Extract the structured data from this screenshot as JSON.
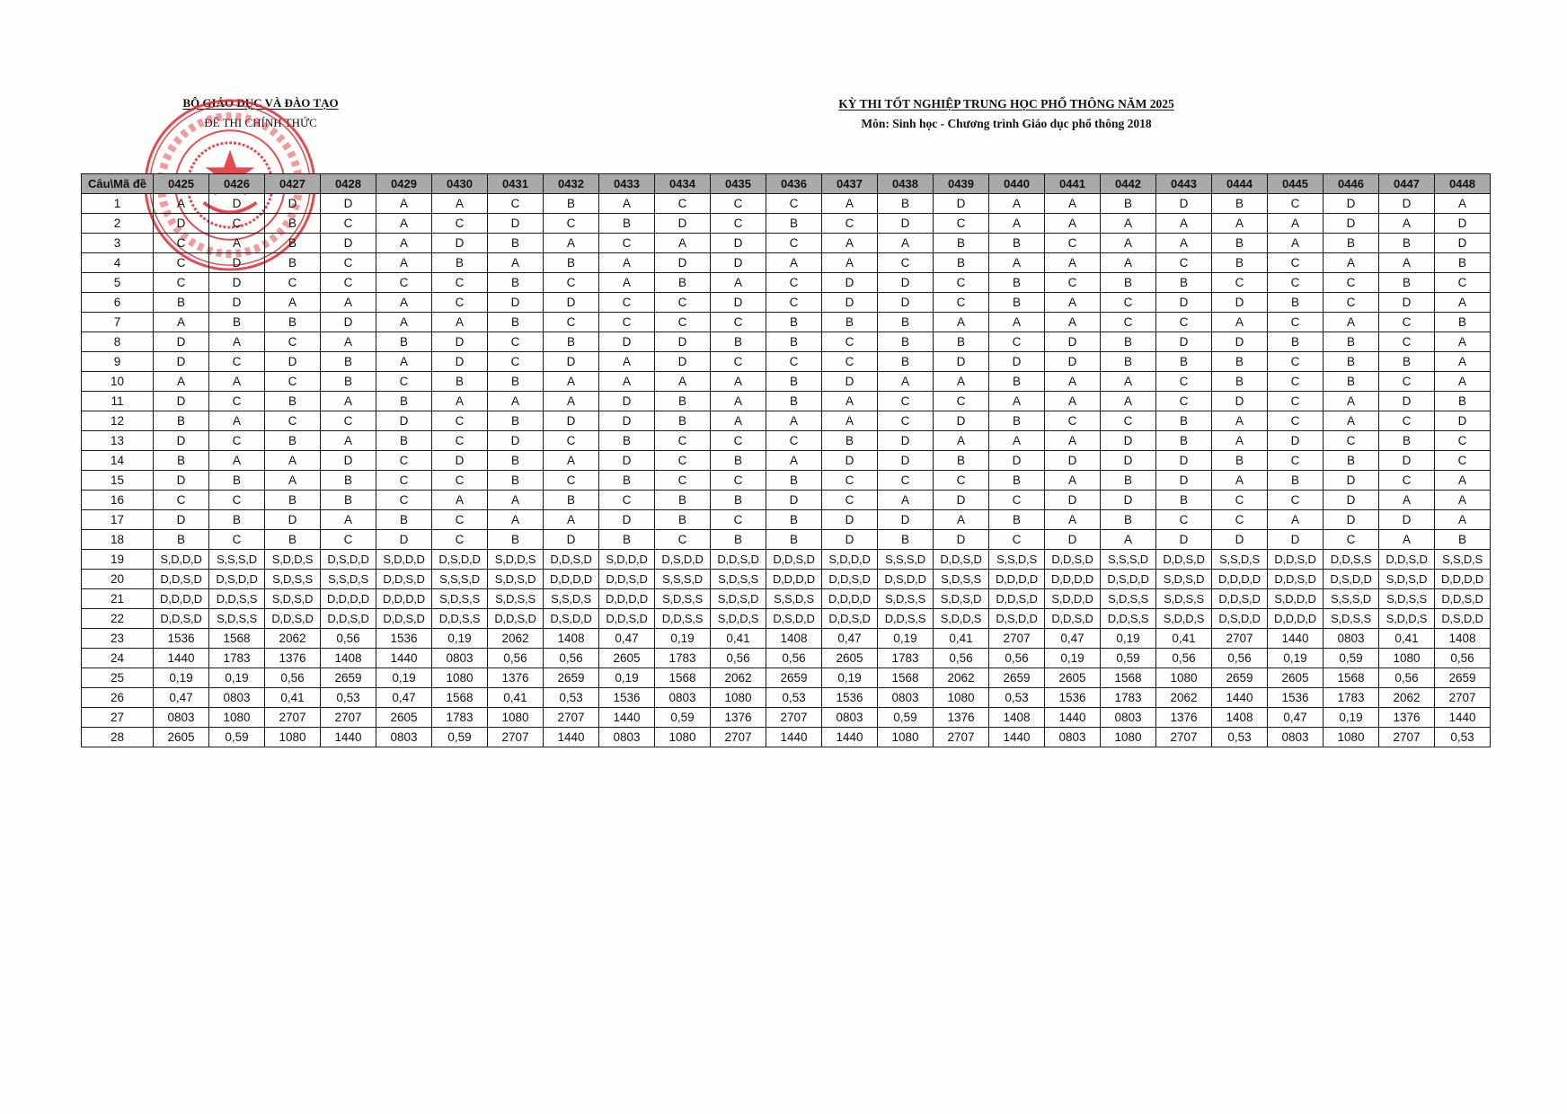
{
  "header_left": {
    "line1": "BỘ GIÁO DỤC VÀ ĐÀO TẠO",
    "line2": "ĐỀ THI CHÍNH THỨC"
  },
  "header_right": {
    "line1": "KỲ THI TỐT NGHIỆP TRUNG HỌC PHỔ THÔNG NĂM 2025",
    "line2": "Môn: Sinh học - Chương trình Giáo dục phổ thông 2018"
  },
  "stamp": {
    "text": "BỘ GIÁO DỤC VÀ ĐÀO TẠO",
    "color": "#e0242b"
  },
  "table": {
    "corner_label": "Câu\\Mã đề",
    "codes": [
      "0425",
      "0426",
      "0427",
      "0428",
      "0429",
      "0430",
      "0431",
      "0432",
      "0433",
      "0434",
      "0435",
      "0436",
      "0437",
      "0438",
      "0439",
      "0440",
      "0441",
      "0442",
      "0443",
      "0444",
      "0445",
      "0446",
      "0447",
      "0448"
    ],
    "rows": [
      {
        "q": "1",
        "a": [
          "A",
          "D",
          "D",
          "D",
          "A",
          "A",
          "C",
          "B",
          "A",
          "C",
          "C",
          "C",
          "A",
          "B",
          "D",
          "A",
          "A",
          "B",
          "D",
          "B",
          "C",
          "D",
          "D",
          "A"
        ]
      },
      {
        "q": "2",
        "a": [
          "D",
          "C",
          "B",
          "C",
          "A",
          "C",
          "D",
          "C",
          "B",
          "D",
          "C",
          "B",
          "C",
          "D",
          "C",
          "A",
          "A",
          "A",
          "A",
          "A",
          "A",
          "D",
          "A",
          "D"
        ]
      },
      {
        "q": "3",
        "a": [
          "C",
          "A",
          "B",
          "D",
          "A",
          "D",
          "B",
          "A",
          "C",
          "A",
          "D",
          "C",
          "A",
          "A",
          "B",
          "B",
          "C",
          "A",
          "A",
          "B",
          "A",
          "B",
          "B",
          "D"
        ]
      },
      {
        "q": "4",
        "a": [
          "C",
          "D",
          "B",
          "C",
          "A",
          "B",
          "A",
          "B",
          "A",
          "D",
          "D",
          "A",
          "A",
          "C",
          "B",
          "A",
          "A",
          "A",
          "C",
          "B",
          "C",
          "A",
          "A",
          "B"
        ]
      },
      {
        "q": "5",
        "a": [
          "C",
          "D",
          "C",
          "C",
          "C",
          "C",
          "B",
          "C",
          "A",
          "B",
          "A",
          "C",
          "D",
          "D",
          "C",
          "B",
          "C",
          "B",
          "B",
          "C",
          "C",
          "C",
          "B",
          "C"
        ]
      },
      {
        "q": "6",
        "a": [
          "B",
          "D",
          "A",
          "A",
          "A",
          "C",
          "D",
          "D",
          "C",
          "C",
          "D",
          "C",
          "D",
          "D",
          "C",
          "B",
          "A",
          "C",
          "D",
          "D",
          "B",
          "C",
          "D",
          "A"
        ]
      },
      {
        "q": "7",
        "a": [
          "A",
          "B",
          "B",
          "D",
          "A",
          "A",
          "B",
          "C",
          "C",
          "C",
          "C",
          "B",
          "B",
          "B",
          "A",
          "A",
          "A",
          "C",
          "C",
          "A",
          "C",
          "A",
          "C",
          "B"
        ]
      },
      {
        "q": "8",
        "a": [
          "D",
          "A",
          "C",
          "A",
          "B",
          "D",
          "C",
          "B",
          "D",
          "D",
          "B",
          "B",
          "C",
          "B",
          "B",
          "C",
          "D",
          "B",
          "D",
          "D",
          "B",
          "B",
          "C",
          "A"
        ]
      },
      {
        "q": "9",
        "a": [
          "D",
          "C",
          "D",
          "B",
          "A",
          "D",
          "C",
          "D",
          "A",
          "D",
          "C",
          "C",
          "C",
          "B",
          "D",
          "D",
          "D",
          "B",
          "B",
          "B",
          "C",
          "B",
          "B",
          "A"
        ]
      },
      {
        "q": "10",
        "a": [
          "A",
          "A",
          "C",
          "B",
          "C",
          "B",
          "B",
          "A",
          "A",
          "A",
          "A",
          "B",
          "D",
          "A",
          "A",
          "B",
          "A",
          "A",
          "C",
          "B",
          "C",
          "B",
          "C",
          "A"
        ]
      },
      {
        "q": "11",
        "a": [
          "D",
          "C",
          "B",
          "A",
          "B",
          "A",
          "A",
          "A",
          "D",
          "B",
          "A",
          "B",
          "A",
          "C",
          "C",
          "A",
          "A",
          "A",
          "C",
          "D",
          "C",
          "A",
          "D",
          "B"
        ]
      },
      {
        "q": "12",
        "a": [
          "B",
          "A",
          "C",
          "C",
          "D",
          "C",
          "B",
          "D",
          "D",
          "B",
          "A",
          "A",
          "A",
          "C",
          "D",
          "B",
          "C",
          "C",
          "B",
          "A",
          "C",
          "A",
          "C",
          "D"
        ]
      },
      {
        "q": "13",
        "a": [
          "D",
          "C",
          "B",
          "A",
          "B",
          "C",
          "D",
          "C",
          "B",
          "C",
          "C",
          "C",
          "B",
          "D",
          "A",
          "A",
          "A",
          "D",
          "B",
          "A",
          "D",
          "C",
          "B",
          "C"
        ]
      },
      {
        "q": "14",
        "a": [
          "B",
          "A",
          "A",
          "D",
          "C",
          "D",
          "B",
          "A",
          "D",
          "C",
          "B",
          "A",
          "D",
          "D",
          "B",
          "D",
          "D",
          "D",
          "D",
          "B",
          "C",
          "B",
          "D",
          "C"
        ]
      },
      {
        "q": "15",
        "a": [
          "D",
          "B",
          "A",
          "B",
          "C",
          "C",
          "B",
          "C",
          "B",
          "C",
          "C",
          "B",
          "C",
          "C",
          "C",
          "B",
          "A",
          "B",
          "D",
          "A",
          "B",
          "D",
          "C",
          "A"
        ]
      },
      {
        "q": "16",
        "a": [
          "C",
          "C",
          "B",
          "B",
          "C",
          "A",
          "A",
          "B",
          "C",
          "B",
          "B",
          "D",
          "C",
          "A",
          "D",
          "C",
          "D",
          "D",
          "B",
          "C",
          "C",
          "D",
          "A",
          "A"
        ]
      },
      {
        "q": "17",
        "a": [
          "D",
          "B",
          "D",
          "A",
          "B",
          "C",
          "A",
          "A",
          "D",
          "B",
          "C",
          "B",
          "D",
          "D",
          "A",
          "B",
          "A",
          "B",
          "C",
          "C",
          "A",
          "D",
          "D",
          "A"
        ]
      },
      {
        "q": "18",
        "a": [
          "B",
          "C",
          "B",
          "C",
          "D",
          "C",
          "B",
          "D",
          "B",
          "C",
          "B",
          "B",
          "D",
          "B",
          "D",
          "C",
          "D",
          "A",
          "D",
          "D",
          "D",
          "C",
          "A",
          "B"
        ]
      },
      {
        "q": "19",
        "a": [
          "S,D,D,D",
          "S,S,S,D",
          "S,D,D,S",
          "D,S,D,D",
          "S,D,D,D",
          "D,S,D,D",
          "S,D,D,S",
          "D,D,S,D",
          "S,D,D,D",
          "D,S,D,D",
          "D,D,S,D",
          "D,D,S,D",
          "S,D,D,D",
          "S,S,S,D",
          "D,D,S,D",
          "S,S,D,S",
          "D,D,S,D",
          "S,S,S,D",
          "D,D,S,D",
          "S,S,D,S",
          "D,D,S,D",
          "D,D,S,S",
          "D,D,S,D",
          "S,S,D,S"
        ]
      },
      {
        "q": "20",
        "a": [
          "D,D,S,D",
          "D,S,D,D",
          "S,D,S,S",
          "S,S,D,S",
          "D,D,S,D",
          "S,S,S,D",
          "S,D,S,D",
          "D,D,D,D",
          "D,D,S,D",
          "S,S,S,D",
          "S,D,S,S",
          "D,D,D,D",
          "D,D,S,D",
          "D,S,D,D",
          "S,D,S,S",
          "D,D,D,D",
          "D,D,D,D",
          "D,S,D,D",
          "S,D,S,D",
          "D,D,D,D",
          "D,D,S,D",
          "D,S,D,D",
          "S,D,S,D",
          "D,D,D,D"
        ]
      },
      {
        "q": "21",
        "a": [
          "D,D,D,D",
          "D,D,S,S",
          "S,D,S,D",
          "D,D,D,D",
          "D,D,D,D",
          "S,D,S,S",
          "S,D,S,S",
          "S,S,D,S",
          "D,D,D,D",
          "S,D,S,S",
          "S,D,S,D",
          "S,S,D,S",
          "D,D,D,D",
          "S,D,S,S",
          "S,D,S,D",
          "D,D,S,D",
          "S,D,D,D",
          "S,D,S,S",
          "S,D,S,S",
          "D,D,S,D",
          "S,D,D,D",
          "S,S,S,D",
          "S,D,S,S",
          "D,D,S,D"
        ]
      },
      {
        "q": "22",
        "a": [
          "D,D,S,D",
          "S,D,S,S",
          "D,D,S,D",
          "D,D,S,D",
          "D,D,S,D",
          "D,D,S,S",
          "D,D,S,D",
          "D,S,D,D",
          "D,D,S,D",
          "D,D,S,S",
          "S,D,D,S",
          "D,S,D,D",
          "D,D,S,D",
          "D,D,S,S",
          "S,D,D,S",
          "D,S,D,D",
          "D,D,S,D",
          "D,D,S,S",
          "S,D,D,S",
          "D,S,D,D",
          "D,D,D,D",
          "S,D,S,S",
          "S,D,D,S",
          "D,S,D,D"
        ]
      },
      {
        "q": "23",
        "a": [
          "1536",
          "1568",
          "2062",
          "0,56",
          "1536",
          "0,19",
          "2062",
          "1408",
          "0,47",
          "0,19",
          "0,41",
          "1408",
          "0,47",
          "0,19",
          "0,41",
          "2707",
          "0,47",
          "0,19",
          "0,41",
          "2707",
          "1440",
          "0803",
          "0,41",
          "1408"
        ]
      },
      {
        "q": "24",
        "a": [
          "1440",
          "1783",
          "1376",
          "1408",
          "1440",
          "0803",
          "0,56",
          "0,56",
          "2605",
          "1783",
          "0,56",
          "0,56",
          "2605",
          "1783",
          "0,56",
          "0,56",
          "0,19",
          "0,59",
          "0,56",
          "0,56",
          "0,19",
          "0,59",
          "1080",
          "0,56"
        ]
      },
      {
        "q": "25",
        "a": [
          "0,19",
          "0,19",
          "0,56",
          "2659",
          "0,19",
          "1080",
          "1376",
          "2659",
          "0,19",
          "1568",
          "2062",
          "2659",
          "0,19",
          "1568",
          "2062",
          "2659",
          "2605",
          "1568",
          "1080",
          "2659",
          "2605",
          "1568",
          "0,56",
          "2659"
        ]
      },
      {
        "q": "26",
        "a": [
          "0,47",
          "0803",
          "0,41",
          "0,53",
          "0,47",
          "1568",
          "0,41",
          "0,53",
          "1536",
          "0803",
          "1080",
          "0,53",
          "1536",
          "0803",
          "1080",
          "0,53",
          "1536",
          "1783",
          "2062",
          "1440",
          "1536",
          "1783",
          "2062",
          "2707"
        ]
      },
      {
        "q": "27",
        "a": [
          "0803",
          "1080",
          "2707",
          "2707",
          "2605",
          "1783",
          "1080",
          "2707",
          "1440",
          "0,59",
          "1376",
          "2707",
          "0803",
          "0,59",
          "1376",
          "1408",
          "1440",
          "0803",
          "1376",
          "1408",
          "0,47",
          "0,19",
          "1376",
          "1440"
        ]
      },
      {
        "q": "28",
        "a": [
          "2605",
          "0,59",
          "1080",
          "1440",
          "0803",
          "0,59",
          "2707",
          "1440",
          "0803",
          "1080",
          "2707",
          "1440",
          "1440",
          "1080",
          "2707",
          "1440",
          "0803",
          "1080",
          "2707",
          "0,53",
          "0803",
          "1080",
          "2707",
          "0,53"
        ]
      }
    ]
  }
}
